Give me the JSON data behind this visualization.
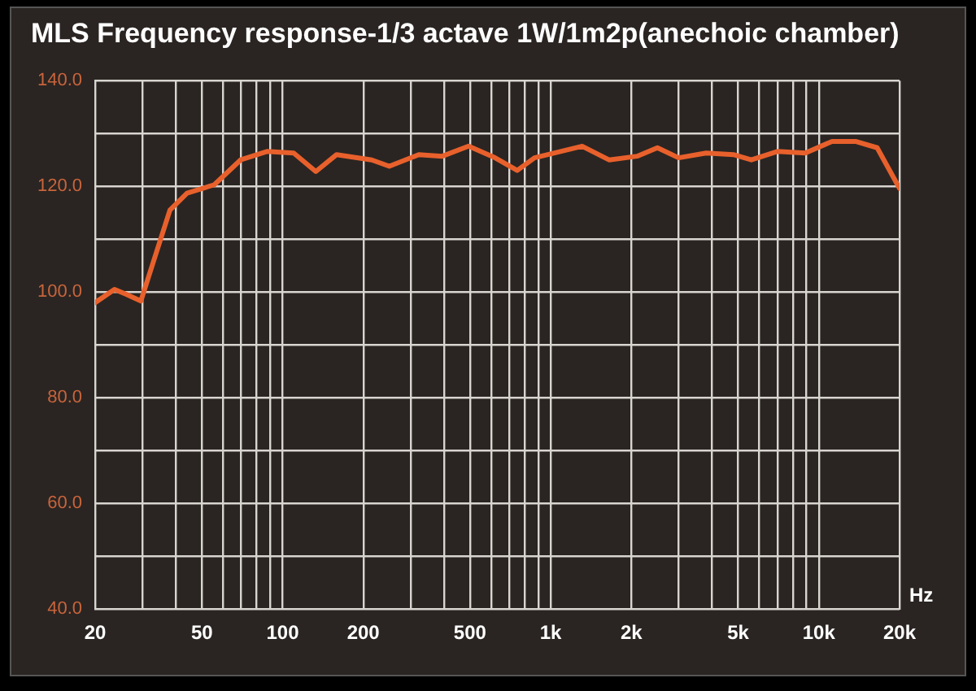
{
  "chart_data": {
    "type": "line",
    "title": "MLS Frequency response-1/3 actave 1W/1m2p(anechoic chamber)",
    "xlabel": "Hz",
    "log": "x",
    "x": [
      20,
      23.6,
      26,
      29.6,
      33.1,
      38,
      44,
      55.6,
      69.7,
      87.4,
      110,
      133,
      159,
      215,
      250,
      322,
      394,
      494,
      620,
      750,
      870,
      1310,
      1650,
      2100,
      2500,
      3000,
      3800,
      4800,
      5600,
      7000,
      8900,
      11200,
      13700,
      16500,
      20000
    ],
    "series": [
      {
        "color": "#e8602c",
        "values": [
          98,
          100.5,
          99.6,
          98.3,
          106,
          115.5,
          118.7,
          120.3,
          125,
          126.6,
          126.3,
          122.8,
          126,
          125,
          123.8,
          126,
          125.7,
          127.6,
          125.4,
          123,
          125.4,
          127.6,
          125,
          125.7,
          127.3,
          125.4,
          126.3,
          126,
          125,
          126.6,
          126.3,
          128.5,
          128.5,
          127.3,
          119.6
        ]
      }
    ],
    "xlim": [
      20,
      20000
    ],
    "xticks": [
      20,
      {
        "value": 30,
        "label": null
      },
      {
        "value": 40,
        "label": null
      },
      50,
      {
        "value": 60,
        "label": null
      },
      {
        "value": 70,
        "label": null
      },
      {
        "value": 80,
        "label": null
      },
      {
        "value": 90,
        "label": null
      },
      100,
      200,
      {
        "value": 300,
        "label": null
      },
      {
        "value": 400,
        "label": null
      },
      500,
      {
        "value": 600,
        "label": null
      },
      {
        "value": 700,
        "label": null
      },
      {
        "value": 800,
        "label": null
      },
      {
        "value": 900,
        "label": null
      },
      {
        "value": 1000,
        "label": "1k"
      },
      {
        "value": 2000,
        "label": "2k"
      },
      {
        "value": 3000,
        "label": null
      },
      {
        "value": 4000,
        "label": null
      },
      {
        "value": 5000,
        "label": "5k"
      },
      {
        "value": 6000,
        "label": null
      },
      {
        "value": 7000,
        "label": null
      },
      {
        "value": 8000,
        "label": null
      },
      {
        "value": 9000,
        "label": null
      },
      {
        "value": 10000,
        "label": "10k"
      },
      {
        "value": 20000,
        "label": "20k"
      }
    ],
    "ylim": [
      40,
      140
    ],
    "yticks": [
      {
        "value": 40,
        "label": "40.0"
      },
      {
        "value": 50,
        "label": null
      },
      {
        "value": 60,
        "label": "60.0"
      },
      {
        "value": 70,
        "label": null
      },
      {
        "value": 80,
        "label": "80.0"
      },
      {
        "value": 90,
        "label": null
      },
      {
        "value": 100,
        "label": "100.0"
      },
      {
        "value": 110,
        "label": null
      },
      {
        "value": 120,
        "label": "120.0"
      },
      {
        "value": 130,
        "label": null
      },
      {
        "value": 140,
        "label": "140.0"
      }
    ],
    "grid": true,
    "legend": false,
    "marker": "none",
    "line_style": "solid"
  }
}
